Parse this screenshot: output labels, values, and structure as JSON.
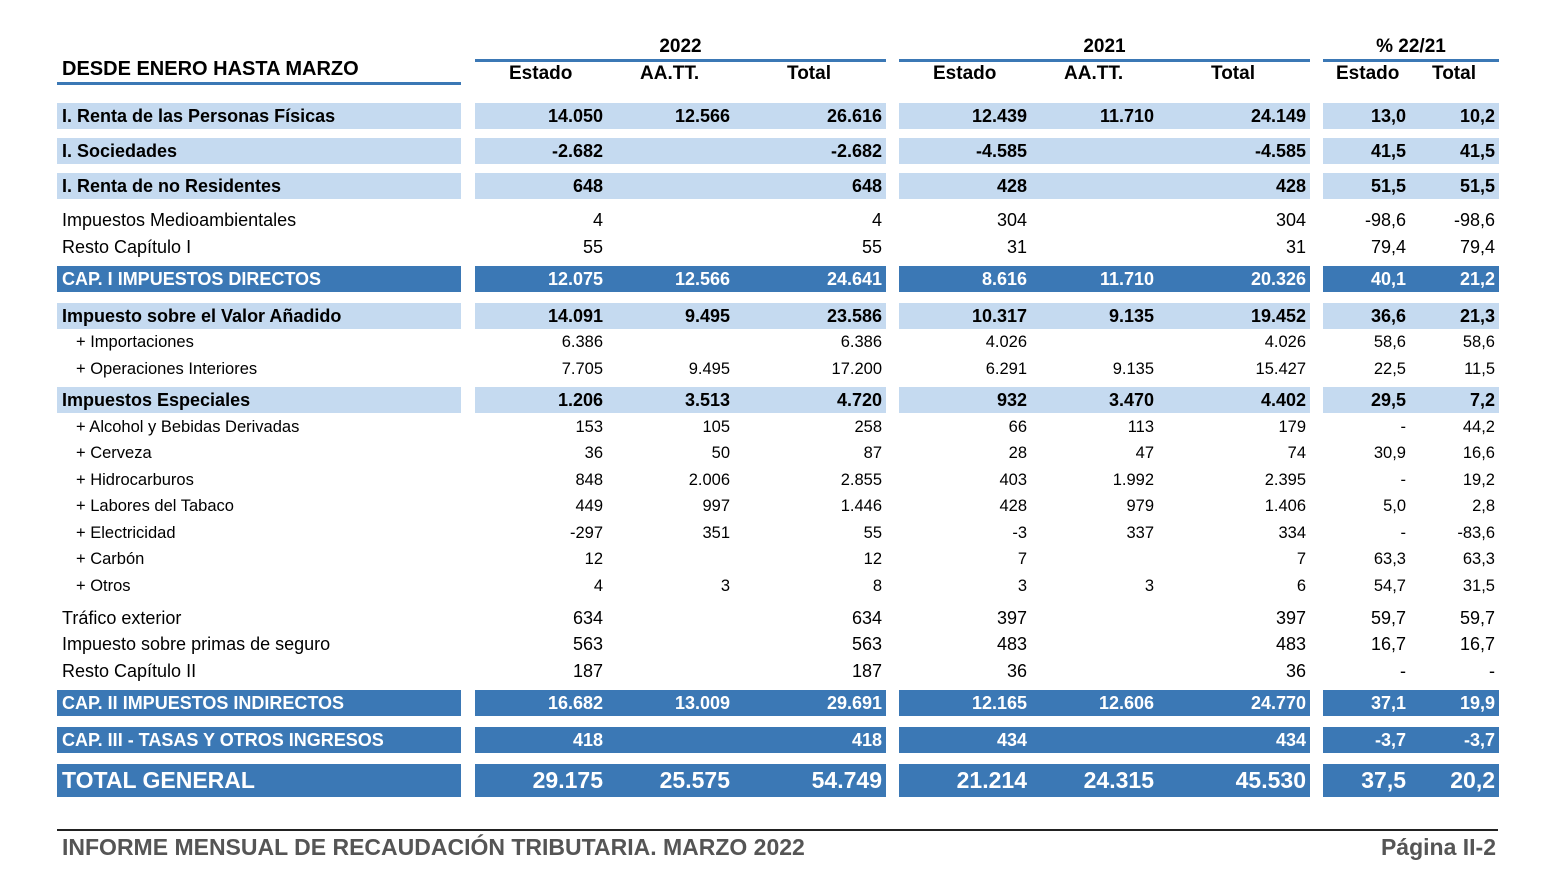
{
  "header": {
    "period_label": "DESDE ENERO HASTA MARZO",
    "year_a": "2022",
    "year_b": "2021",
    "pct_label": "% 22/21",
    "col_estado": "Estado",
    "col_aatt": "AA.TT.",
    "col_total": "Total"
  },
  "rows": [
    {
      "label": "I. Renta de las Personas Físicas",
      "e22": "14.050",
      "a22": "12.566",
      "t22": "26.616",
      "e21": "12.439",
      "a21": "11.710",
      "t21": "24.149",
      "pe": "13,0",
      "pt": "10,2"
    },
    {
      "label": "I. Sociedades",
      "e22": "-2.682",
      "a22": "",
      "t22": "-2.682",
      "e21": "-4.585",
      "a21": "",
      "t21": "-4.585",
      "pe": "41,5",
      "pt": "41,5"
    },
    {
      "label": "I. Renta de no Residentes",
      "e22": "648",
      "a22": "",
      "t22": "648",
      "e21": "428",
      "a21": "",
      "t21": "428",
      "pe": "51,5",
      "pt": "51,5"
    },
    {
      "label": "Impuestos Medioambientales",
      "e22": "4",
      "a22": "",
      "t22": "4",
      "e21": "304",
      "a21": "",
      "t21": "304",
      "pe": "-98,6",
      "pt": "-98,6"
    },
    {
      "label": "Resto Capítulo I",
      "e22": "55",
      "a22": "",
      "t22": "55",
      "e21": "31",
      "a21": "",
      "t21": "31",
      "pe": "79,4",
      "pt": "79,4"
    },
    {
      "label": "CAP. I IMPUESTOS DIRECTOS",
      "e22": "12.075",
      "a22": "12.566",
      "t22": "24.641",
      "e21": "8.616",
      "a21": "11.710",
      "t21": "20.326",
      "pe": "40,1",
      "pt": "21,2"
    },
    {
      "label": "Impuesto sobre el Valor Añadido",
      "e22": "14.091",
      "a22": "9.495",
      "t22": "23.586",
      "e21": "10.317",
      "a21": "9.135",
      "t21": "19.452",
      "pe": "36,6",
      "pt": "21,3"
    },
    {
      "label": "+ Importaciones",
      "e22": "6.386",
      "a22": "",
      "t22": "6.386",
      "e21": "4.026",
      "a21": "",
      "t21": "4.026",
      "pe": "58,6",
      "pt": "58,6"
    },
    {
      "label": "+ Operaciones Interiores",
      "e22": "7.705",
      "a22": "9.495",
      "t22": "17.200",
      "e21": "6.291",
      "a21": "9.135",
      "t21": "15.427",
      "pe": "22,5",
      "pt": "11,5"
    },
    {
      "label": "Impuestos Especiales",
      "e22": "1.206",
      "a22": "3.513",
      "t22": "4.720",
      "e21": "932",
      "a21": "3.470",
      "t21": "4.402",
      "pe": "29,5",
      "pt": "7,2"
    },
    {
      "label": "+ Alcohol y Bebidas Derivadas",
      "e22": "153",
      "a22": "105",
      "t22": "258",
      "e21": "66",
      "a21": "113",
      "t21": "179",
      "pe": "-",
      "pt": "44,2"
    },
    {
      "label": "+ Cerveza",
      "e22": "36",
      "a22": "50",
      "t22": "87",
      "e21": "28",
      "a21": "47",
      "t21": "74",
      "pe": "30,9",
      "pt": "16,6"
    },
    {
      "label": "+ Hidrocarburos",
      "e22": "848",
      "a22": "2.006",
      "t22": "2.855",
      "e21": "403",
      "a21": "1.992",
      "t21": "2.395",
      "pe": "-",
      "pt": "19,2"
    },
    {
      "label": "+ Labores del Tabaco",
      "e22": "449",
      "a22": "997",
      "t22": "1.446",
      "e21": "428",
      "a21": "979",
      "t21": "1.406",
      "pe": "5,0",
      "pt": "2,8"
    },
    {
      "label": "+ Electricidad",
      "e22": "-297",
      "a22": "351",
      "t22": "55",
      "e21": "-3",
      "a21": "337",
      "t21": "334",
      "pe": "-",
      "pt": "-83,6"
    },
    {
      "label": "+ Carbón",
      "e22": "12",
      "a22": "",
      "t22": "12",
      "e21": "7",
      "a21": "",
      "t21": "7",
      "pe": "63,3",
      "pt": "63,3"
    },
    {
      "label": "+ Otros",
      "e22": "4",
      "a22": "3",
      "t22": "8",
      "e21": "3",
      "a21": "3",
      "t21": "6",
      "pe": "54,7",
      "pt": "31,5"
    },
    {
      "label": "Tráfico exterior",
      "e22": "634",
      "a22": "",
      "t22": "634",
      "e21": "397",
      "a21": "",
      "t21": "397",
      "pe": "59,7",
      "pt": "59,7"
    },
    {
      "label": "Impuesto sobre primas de seguro",
      "e22": "563",
      "a22": "",
      "t22": "563",
      "e21": "483",
      "a21": "",
      "t21": "483",
      "pe": "16,7",
      "pt": "16,7"
    },
    {
      "label": "Resto Capítulo II",
      "e22": "187",
      "a22": "",
      "t22": "187",
      "e21": "36",
      "a21": "",
      "t21": "36",
      "pe": "-",
      "pt": "-"
    },
    {
      "label": "CAP. II IMPUESTOS INDIRECTOS",
      "e22": "16.682",
      "a22": "13.009",
      "t22": "29.691",
      "e21": "12.165",
      "a21": "12.606",
      "t21": "24.770",
      "pe": "37,1",
      "pt": "19,9"
    },
    {
      "label": "CAP. III - TASAS Y OTROS INGRESOS",
      "e22": "418",
      "a22": "",
      "t22": "418",
      "e21": "434",
      "a21": "",
      "t21": "434",
      "pe": "-3,7",
      "pt": "-3,7"
    },
    {
      "label": "TOTAL GENERAL",
      "e22": "29.175",
      "a22": "25.575",
      "t22": "54.749",
      "e21": "21.214",
      "a21": "24.315",
      "t21": "45.530",
      "pe": "37,5",
      "pt": "20,2"
    }
  ],
  "footer": {
    "report_title": "INFORME MENSUAL DE RECAUDACIÓN TRIBUTARIA. MARZO 2022",
    "page": "Página II-2"
  }
}
